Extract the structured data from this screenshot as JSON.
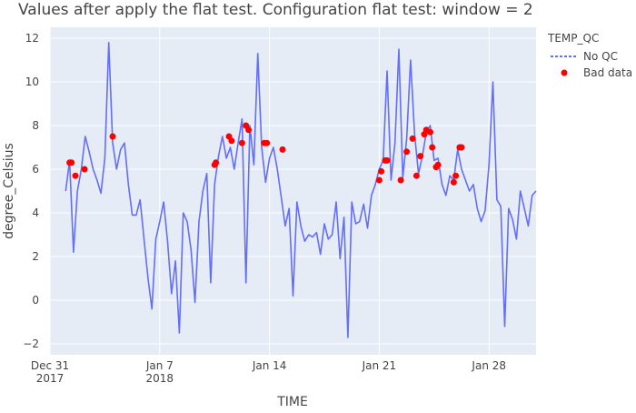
{
  "chart_data": {
    "type": "line",
    "title": "Values after apply the flat test.  Configuration flat test: window = 2",
    "xlabel": "TIME",
    "ylabel": "degree_Celsius",
    "xlim": [
      "2017-12-31T00:00",
      "2018-01-31T00:00"
    ],
    "ylim": [
      -2.5,
      12.5
    ],
    "x_ticks": [
      {
        "date": "2017-12-31",
        "line1": "Dec 31",
        "line2": "2017"
      },
      {
        "date": "2018-01-07",
        "line1": "Jan 7",
        "line2": "2018"
      },
      {
        "date": "2018-01-14",
        "line1": "Jan 14",
        "line2": ""
      },
      {
        "date": "2018-01-21",
        "line1": "Jan 21",
        "line2": ""
      },
      {
        "date": "2018-01-28",
        "line1": "Jan 28",
        "line2": ""
      }
    ],
    "y_ticks": [
      -2,
      0,
      2,
      4,
      6,
      8,
      10,
      12
    ],
    "y_tick_labels": [
      "−2",
      "0",
      "2",
      "4",
      "6",
      "8",
      "10",
      "12"
    ],
    "grid": true,
    "legend": {
      "title": "TEMP_QC",
      "placement": "top-right"
    },
    "colors": {
      "line": "#636efa",
      "marker": "#ff0000",
      "plot_bg": "#e5ecf6",
      "grid": "#ffffff"
    },
    "series": [
      {
        "name": "No QC",
        "type": "line",
        "x": [
          "2018-01-01T00:00",
          "2018-01-01T06:00",
          "2018-01-01T12:00",
          "2018-01-01T18:00",
          "2018-01-02T00:00",
          "2018-01-02T06:00",
          "2018-01-02T12:00",
          "2018-01-02T18:00",
          "2018-01-03T00:00",
          "2018-01-03T06:00",
          "2018-01-03T12:00",
          "2018-01-03T18:00",
          "2018-01-04T00:00",
          "2018-01-04T06:00",
          "2018-01-04T12:00",
          "2018-01-04T18:00",
          "2018-01-05T00:00",
          "2018-01-05T06:00",
          "2018-01-05T12:00",
          "2018-01-05T18:00",
          "2018-01-06T00:00",
          "2018-01-06T06:00",
          "2018-01-06T12:00",
          "2018-01-06T18:00",
          "2018-01-07T00:00",
          "2018-01-07T06:00",
          "2018-01-07T12:00",
          "2018-01-07T18:00",
          "2018-01-08T00:00",
          "2018-01-08T06:00",
          "2018-01-08T12:00",
          "2018-01-08T18:00",
          "2018-01-09T00:00",
          "2018-01-09T06:00",
          "2018-01-09T12:00",
          "2018-01-09T18:00",
          "2018-01-10T00:00",
          "2018-01-10T06:00",
          "2018-01-10T12:00",
          "2018-01-10T18:00",
          "2018-01-11T00:00",
          "2018-01-11T06:00",
          "2018-01-11T12:00",
          "2018-01-11T18:00",
          "2018-01-12T00:00",
          "2018-01-12T06:00",
          "2018-01-12T12:00",
          "2018-01-12T18:00",
          "2018-01-13T00:00",
          "2018-01-13T06:00",
          "2018-01-13T12:00",
          "2018-01-13T18:00",
          "2018-01-14T00:00",
          "2018-01-14T06:00",
          "2018-01-14T12:00",
          "2018-01-14T18:00",
          "2018-01-15T00:00",
          "2018-01-15T06:00",
          "2018-01-15T12:00",
          "2018-01-15T18:00",
          "2018-01-16T00:00",
          "2018-01-16T06:00",
          "2018-01-16T12:00",
          "2018-01-16T18:00",
          "2018-01-17T00:00",
          "2018-01-17T06:00",
          "2018-01-17T12:00",
          "2018-01-17T18:00",
          "2018-01-18T00:00",
          "2018-01-18T06:00",
          "2018-01-18T12:00",
          "2018-01-18T18:00",
          "2018-01-19T00:00",
          "2018-01-19T06:00",
          "2018-01-19T12:00",
          "2018-01-19T18:00",
          "2018-01-20T00:00",
          "2018-01-20T06:00",
          "2018-01-20T12:00",
          "2018-01-20T18:00",
          "2018-01-21T00:00",
          "2018-01-21T06:00",
          "2018-01-21T12:00",
          "2018-01-21T18:00",
          "2018-01-22T00:00",
          "2018-01-22T06:00",
          "2018-01-22T12:00",
          "2018-01-22T18:00",
          "2018-01-23T00:00",
          "2018-01-23T06:00",
          "2018-01-23T12:00",
          "2018-01-23T18:00",
          "2018-01-24T00:00",
          "2018-01-24T06:00",
          "2018-01-24T12:00",
          "2018-01-24T18:00",
          "2018-01-25T00:00",
          "2018-01-25T06:00",
          "2018-01-25T12:00",
          "2018-01-25T18:00",
          "2018-01-26T00:00",
          "2018-01-26T06:00",
          "2018-01-26T12:00",
          "2018-01-26T18:00",
          "2018-01-27T00:00",
          "2018-01-27T06:00",
          "2018-01-27T12:00",
          "2018-01-27T18:00",
          "2018-01-28T00:00",
          "2018-01-28T06:00",
          "2018-01-28T12:00",
          "2018-01-28T18:00",
          "2018-01-29T00:00",
          "2018-01-29T06:00",
          "2018-01-29T12:00",
          "2018-01-29T18:00",
          "2018-01-30T00:00",
          "2018-01-30T06:00",
          "2018-01-30T12:00",
          "2018-01-30T18:00",
          "2018-01-31T00:00"
        ],
        "y": [
          5.0,
          6.4,
          2.2,
          5.0,
          6.0,
          7.5,
          6.8,
          6.0,
          5.5,
          4.9,
          6.5,
          11.8,
          7.2,
          6.0,
          6.9,
          7.2,
          5.3,
          3.9,
          3.9,
          4.6,
          2.8,
          1.0,
          -0.4,
          2.8,
          3.6,
          4.5,
          2.7,
          0.3,
          1.8,
          -1.5,
          4.0,
          3.6,
          2.3,
          -0.1,
          3.6,
          5.0,
          5.8,
          0.8,
          5.3,
          6.6,
          7.5,
          6.5,
          7.0,
          6.0,
          7.2,
          8.3,
          0.8,
          8.0,
          6.2,
          11.3,
          7.0,
          5.4,
          6.5,
          7.0,
          6.0,
          4.7,
          3.4,
          4.2,
          0.2,
          4.5,
          3.4,
          2.7,
          3.0,
          2.9,
          3.1,
          2.1,
          3.5,
          2.8,
          3.0,
          4.5,
          1.9,
          3.8,
          -1.7,
          4.5,
          3.5,
          3.6,
          4.4,
          3.3,
          4.8,
          5.3,
          6.0,
          6.4,
          10.5,
          5.5,
          7.2,
          11.5,
          5.6,
          7.4,
          11.0,
          7.6,
          5.8,
          6.6,
          7.7,
          8.0,
          6.4,
          6.5,
          5.3,
          4.8,
          5.7,
          5.5,
          6.9,
          6.0,
          5.5,
          5.0,
          5.3,
          4.2,
          3.6,
          4.1,
          6.2,
          10.0,
          4.6,
          4.3,
          -1.2,
          4.2,
          3.7,
          2.8,
          5.0,
          4.2,
          3.4,
          4.8,
          5.0
        ]
      },
      {
        "name": "Bad data",
        "type": "scatter",
        "x": [
          "2018-01-01T06:00",
          "2018-01-01T09:00",
          "2018-01-01T15:00",
          "2018-01-02T05:00",
          "2018-01-04T00:00",
          "2018-01-10T12:00",
          "2018-01-10T14:00",
          "2018-01-11T10:00",
          "2018-01-11T14:00",
          "2018-01-12T06:00",
          "2018-01-12T12:00",
          "2018-01-12T16:00",
          "2018-01-13T16:00",
          "2018-01-13T20:00",
          "2018-01-14T20:00",
          "2018-01-21T00:00",
          "2018-01-21T03:00",
          "2018-01-21T09:00",
          "2018-01-21T12:00",
          "2018-01-22T09:00",
          "2018-01-22T18:00",
          "2018-01-23T03:00",
          "2018-01-23T09:00",
          "2018-01-23T15:00",
          "2018-01-23T21:00",
          "2018-01-24T00:00",
          "2018-01-24T06:00",
          "2018-01-24T09:00",
          "2018-01-24T15:00",
          "2018-01-24T18:00",
          "2018-01-25T18:00",
          "2018-01-25T21:00",
          "2018-01-26T03:00",
          "2018-01-26T06:00"
        ],
        "y": [
          6.3,
          6.3,
          5.7,
          6.0,
          7.5,
          6.2,
          6.3,
          7.5,
          7.3,
          7.2,
          8.0,
          7.8,
          7.2,
          7.2,
          6.9,
          5.5,
          5.9,
          6.4,
          6.4,
          5.5,
          6.8,
          7.4,
          5.7,
          6.6,
          7.6,
          7.8,
          7.7,
          7.0,
          6.1,
          6.2,
          5.4,
          5.7,
          7.0,
          7.0
        ]
      }
    ]
  }
}
